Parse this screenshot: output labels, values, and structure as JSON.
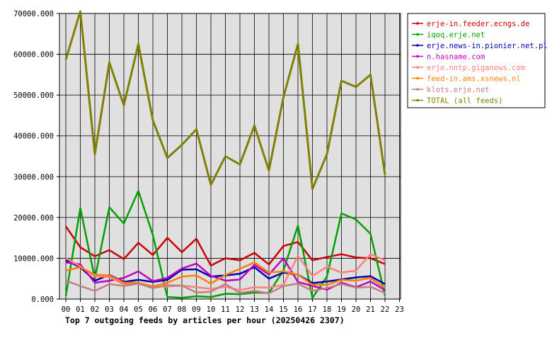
{
  "chart_data": {
    "type": "line",
    "caption": "Top 7 outgoing feeds by articles per hour (20250426 2307)",
    "xlabel": "",
    "ylabel": "",
    "categories": [
      "00",
      "01",
      "02",
      "03",
      "04",
      "05",
      "06",
      "07",
      "08",
      "09",
      "10",
      "11",
      "12",
      "13",
      "14",
      "15",
      "16",
      "17",
      "18",
      "19",
      "20",
      "21",
      "22",
      "23"
    ],
    "y_tick_labels": [
      "0.000",
      "10000.000",
      "20000.000",
      "30000.000",
      "40000.000",
      "50000.000",
      "60000.000",
      "70000.000"
    ],
    "ylim": [
      0,
      70000
    ],
    "grid": true,
    "legend_position": "right",
    "series": [
      {
        "name": "erje-in.feeder.ecngs.de",
        "color": "#cc0000",
        "values": [
          17800,
          12700,
          10500,
          12000,
          9800,
          13800,
          10800,
          15000,
          11500,
          14800,
          8200,
          10000,
          9500,
          11300,
          8500,
          13000,
          14000,
          9500,
          10300,
          11000,
          10200,
          10000,
          8600,
          null
        ]
      },
      {
        "name": "iqoq.erje.net",
        "color": "#00a000",
        "values": [
          800,
          22300,
          5000,
          22500,
          18500,
          26500,
          15700,
          500,
          300,
          700,
          500,
          1300,
          1200,
          1600,
          1500,
          7000,
          18000,
          300,
          5500,
          21000,
          19500,
          16000,
          900,
          null
        ]
      },
      {
        "name": "erje.news-in.pionier.net.pl",
        "color": "#0000b0",
        "values": [
          9500,
          7800,
          4500,
          5900,
          4200,
          4700,
          4200,
          4700,
          7200,
          7300,
          5500,
          5800,
          6200,
          7800,
          5000,
          6500,
          6000,
          3900,
          4300,
          4800,
          5300,
          5600,
          3700,
          null
        ]
      },
      {
        "name": "n.hasname.com",
        "color": "#c000c0",
        "values": [
          9000,
          8500,
          4000,
          4500,
          5200,
          6800,
          4400,
          5200,
          7500,
          8700,
          5700,
          4500,
          4800,
          8400,
          6000,
          10000,
          4200,
          3200,
          2300,
          4000,
          2900,
          4300,
          2200,
          null
        ]
      },
      {
        "name": "erje.nntp.giganews.com",
        "color": "#ff8080",
        "values": [
          10000,
          8000,
          5600,
          5400,
          3600,
          3700,
          3000,
          3100,
          3300,
          2900,
          2500,
          3000,
          2200,
          2900,
          2800,
          3500,
          10600,
          5700,
          7900,
          6500,
          7000,
          11000,
          9500,
          null
        ]
      },
      {
        "name": "feed-in.ams.xsnews.nl",
        "color": "#ff8000",
        "values": [
          7000,
          7800,
          6000,
          5800,
          4000,
          4000,
          3100,
          4000,
          5500,
          5800,
          3800,
          5900,
          7400,
          9000,
          6500,
          6800,
          6000,
          3500,
          3500,
          4700,
          4500,
          5200,
          2700,
          null
        ]
      },
      {
        "name": "klots.erje.net",
        "color": "#c08080",
        "values": [
          4500,
          3200,
          2000,
          3700,
          3200,
          3800,
          2700,
          3400,
          3300,
          1600,
          1800,
          3700,
          1500,
          2000,
          1400,
          3200,
          3800,
          2000,
          2700,
          3700,
          2800,
          3000,
          1500,
          null
        ]
      },
      {
        "name": "TOTAL (all feeds)",
        "color": "#808000",
        "values": [
          58700,
          70500,
          35500,
          58000,
          47500,
          62500,
          43800,
          34600,
          37800,
          41600,
          28000,
          35000,
          33000,
          42500,
          31500,
          49500,
          62500,
          27000,
          35500,
          53500,
          52000,
          55000,
          30500,
          null
        ]
      }
    ]
  }
}
